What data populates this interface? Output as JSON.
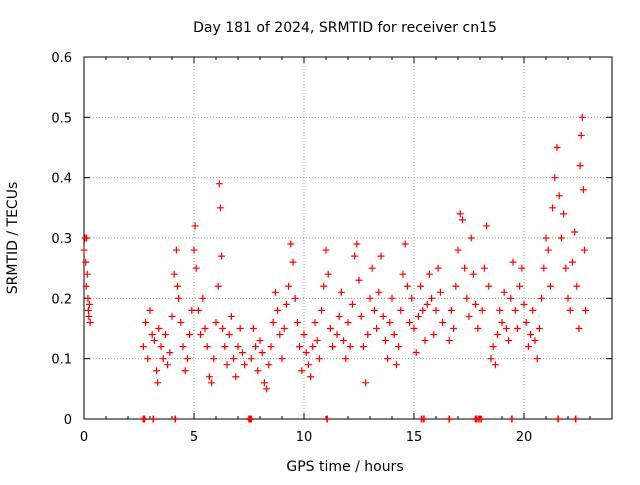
{
  "chart_data": {
    "type": "scatter",
    "title": "Day 181 of 2024, SRMTID for receiver cn15",
    "xlabel": "GPS time / hours",
    "ylabel": "SRMTID / TECUs",
    "xlim": [
      0,
      24
    ],
    "ylim": [
      0,
      0.6
    ],
    "x_ticks": [
      0,
      5,
      10,
      15,
      20
    ],
    "x_tick_labels": [
      "0",
      "5",
      "10",
      "15",
      "20"
    ],
    "y_ticks": [
      0,
      0.1,
      0.2,
      0.3,
      0.4,
      0.5,
      0.6
    ],
    "y_tick_labels": [
      "0",
      "0.1",
      "0.2",
      "0.3",
      "0.4",
      "0.5",
      "0.6"
    ],
    "grid": true,
    "marker": "+",
    "color": "#ff0000",
    "series": [
      {
        "name": "SRMTID",
        "points": [
          [
            0.0,
            0.28
          ],
          [
            0.05,
            0.3
          ],
          [
            0.08,
            0.26
          ],
          [
            0.1,
            0.22
          ],
          [
            0.12,
            0.3
          ],
          [
            0.15,
            0.24
          ],
          [
            0.18,
            0.2
          ],
          [
            0.2,
            0.18
          ],
          [
            0.22,
            0.17
          ],
          [
            0.25,
            0.19
          ],
          [
            0.28,
            0.16
          ],
          [
            2.7,
            0.12
          ],
          [
            2.8,
            0.16
          ],
          [
            2.9,
            0.1
          ],
          [
            3.0,
            0.18
          ],
          [
            3.1,
            0.14
          ],
          [
            3.2,
            0.13
          ],
          [
            3.3,
            0.08
          ],
          [
            3.35,
            0.06
          ],
          [
            3.4,
            0.15
          ],
          [
            3.5,
            0.12
          ],
          [
            3.6,
            0.1
          ],
          [
            3.7,
            0.14
          ],
          [
            3.8,
            0.09
          ],
          [
            3.9,
            0.11
          ],
          [
            4.0,
            0.17
          ],
          [
            4.1,
            0.24
          ],
          [
            4.2,
            0.28
          ],
          [
            4.25,
            0.22
          ],
          [
            4.3,
            0.2
          ],
          [
            4.4,
            0.16
          ],
          [
            4.5,
            0.12
          ],
          [
            4.6,
            0.08
          ],
          [
            4.7,
            0.1
          ],
          [
            4.8,
            0.14
          ],
          [
            4.9,
            0.18
          ],
          [
            5.0,
            0.28
          ],
          [
            5.05,
            0.32
          ],
          [
            5.1,
            0.25
          ],
          [
            5.2,
            0.18
          ],
          [
            5.3,
            0.14
          ],
          [
            5.4,
            0.2
          ],
          [
            5.5,
            0.15
          ],
          [
            5.6,
            0.12
          ],
          [
            5.7,
            0.07
          ],
          [
            5.8,
            0.06
          ],
          [
            5.9,
            0.1
          ],
          [
            6.0,
            0.16
          ],
          [
            6.1,
            0.22
          ],
          [
            6.15,
            0.39
          ],
          [
            6.2,
            0.35
          ],
          [
            6.25,
            0.27
          ],
          [
            6.3,
            0.15
          ],
          [
            6.4,
            0.12
          ],
          [
            6.5,
            0.09
          ],
          [
            6.6,
            0.14
          ],
          [
            6.7,
            0.17
          ],
          [
            6.8,
            0.1
          ],
          [
            6.9,
            0.07
          ],
          [
            7.0,
            0.12
          ],
          [
            7.1,
            0.15
          ],
          [
            7.2,
            0.11
          ],
          [
            7.3,
            0.09
          ],
          [
            7.6,
            0.1
          ],
          [
            7.7,
            0.15
          ],
          [
            7.8,
            0.12
          ],
          [
            7.9,
            0.08
          ],
          [
            8.0,
            0.13
          ],
          [
            8.1,
            0.11
          ],
          [
            8.2,
            0.06
          ],
          [
            8.3,
            0.05
          ],
          [
            8.4,
            0.09
          ],
          [
            8.5,
            0.12
          ],
          [
            8.6,
            0.16
          ],
          [
            8.7,
            0.21
          ],
          [
            8.8,
            0.18
          ],
          [
            8.9,
            0.14
          ],
          [
            9.0,
            0.1
          ],
          [
            9.1,
            0.15
          ],
          [
            9.2,
            0.19
          ],
          [
            9.3,
            0.22
          ],
          [
            9.4,
            0.29
          ],
          [
            9.5,
            0.26
          ],
          [
            9.6,
            0.2
          ],
          [
            9.7,
            0.16
          ],
          [
            9.8,
            0.12
          ],
          [
            9.9,
            0.08
          ],
          [
            10.0,
            0.14
          ],
          [
            10.1,
            0.11
          ],
          [
            10.2,
            0.09
          ],
          [
            10.3,
            0.07
          ],
          [
            10.4,
            0.12
          ],
          [
            10.5,
            0.16
          ],
          [
            10.6,
            0.13
          ],
          [
            10.7,
            0.1
          ],
          [
            10.8,
            0.18
          ],
          [
            10.9,
            0.22
          ],
          [
            11.0,
            0.28
          ],
          [
            11.1,
            0.24
          ],
          [
            11.2,
            0.15
          ],
          [
            11.3,
            0.12
          ],
          [
            11.5,
            0.14
          ],
          [
            11.6,
            0.17
          ],
          [
            11.7,
            0.21
          ],
          [
            11.8,
            0.13
          ],
          [
            11.9,
            0.1
          ],
          [
            12.0,
            0.16
          ],
          [
            12.1,
            0.12
          ],
          [
            12.2,
            0.19
          ],
          [
            12.3,
            0.27
          ],
          [
            12.4,
            0.29
          ],
          [
            12.5,
            0.23
          ],
          [
            12.6,
            0.17
          ],
          [
            12.7,
            0.12
          ],
          [
            12.8,
            0.06
          ],
          [
            12.9,
            0.14
          ],
          [
            13.0,
            0.2
          ],
          [
            13.1,
            0.25
          ],
          [
            13.2,
            0.18
          ],
          [
            13.3,
            0.15
          ],
          [
            13.4,
            0.21
          ],
          [
            13.5,
            0.27
          ],
          [
            13.6,
            0.17
          ],
          [
            13.7,
            0.13
          ],
          [
            13.8,
            0.1
          ],
          [
            13.9,
            0.16
          ],
          [
            14.0,
            0.2
          ],
          [
            14.1,
            0.14
          ],
          [
            14.2,
            0.09
          ],
          [
            14.3,
            0.12
          ],
          [
            14.4,
            0.18
          ],
          [
            14.5,
            0.24
          ],
          [
            14.6,
            0.29
          ],
          [
            14.7,
            0.22
          ],
          [
            14.8,
            0.16
          ],
          [
            14.9,
            0.2
          ],
          [
            15.0,
            0.15
          ],
          [
            15.1,
            0.11
          ],
          [
            15.2,
            0.17
          ],
          [
            15.3,
            0.22
          ],
          [
            15.4,
            0.18
          ],
          [
            15.5,
            0.13
          ],
          [
            15.6,
            0.19
          ],
          [
            15.7,
            0.24
          ],
          [
            15.8,
            0.2
          ],
          [
            15.9,
            0.14
          ],
          [
            16.0,
            0.18
          ],
          [
            16.1,
            0.25
          ],
          [
            16.2,
            0.21
          ],
          [
            16.3,
            0.16
          ],
          [
            16.6,
            0.13
          ],
          [
            16.7,
            0.18
          ],
          [
            16.8,
            0.15
          ],
          [
            16.9,
            0.22
          ],
          [
            17.0,
            0.28
          ],
          [
            17.1,
            0.34
          ],
          [
            17.2,
            0.33
          ],
          [
            17.3,
            0.25
          ],
          [
            17.4,
            0.2
          ],
          [
            17.5,
            0.17
          ],
          [
            17.6,
            0.3
          ],
          [
            17.7,
            0.24
          ],
          [
            17.8,
            0.19
          ],
          [
            17.9,
            0.15
          ],
          [
            18.1,
            0.18
          ],
          [
            18.2,
            0.25
          ],
          [
            18.3,
            0.32
          ],
          [
            18.4,
            0.22
          ],
          [
            18.5,
            0.1
          ],
          [
            18.6,
            0.12
          ],
          [
            18.7,
            0.09
          ],
          [
            18.8,
            0.14
          ],
          [
            18.9,
            0.18
          ],
          [
            19.0,
            0.16
          ],
          [
            19.1,
            0.21
          ],
          [
            19.2,
            0.15
          ],
          [
            19.3,
            0.13
          ],
          [
            19.4,
            0.2
          ],
          [
            19.5,
            0.26
          ],
          [
            19.6,
            0.18
          ],
          [
            19.7,
            0.15
          ],
          [
            19.8,
            0.22
          ],
          [
            19.9,
            0.25
          ],
          [
            20.0,
            0.19
          ],
          [
            20.1,
            0.16
          ],
          [
            20.2,
            0.12
          ],
          [
            20.3,
            0.14
          ],
          [
            20.4,
            0.18
          ],
          [
            20.5,
            0.13
          ],
          [
            20.6,
            0.1
          ],
          [
            20.7,
            0.15
          ],
          [
            20.8,
            0.2
          ],
          [
            20.9,
            0.25
          ],
          [
            21.0,
            0.3
          ],
          [
            21.1,
            0.28
          ],
          [
            21.2,
            0.22
          ],
          [
            21.3,
            0.35
          ],
          [
            21.4,
            0.4
          ],
          [
            21.5,
            0.45
          ],
          [
            21.6,
            0.37
          ],
          [
            21.7,
            0.3
          ],
          [
            21.8,
            0.34
          ],
          [
            21.9,
            0.25
          ],
          [
            22.0,
            0.2
          ],
          [
            22.1,
            0.18
          ],
          [
            22.2,
            0.26
          ],
          [
            22.3,
            0.31
          ],
          [
            22.4,
            0.22
          ],
          [
            22.5,
            0.15
          ],
          [
            22.55,
            0.42
          ],
          [
            22.6,
            0.47
          ],
          [
            22.65,
            0.5
          ],
          [
            22.7,
            0.38
          ],
          [
            22.75,
            0.28
          ],
          [
            22.8,
            0.18
          ]
        ]
      }
    ],
    "zero_markers_x": [
      2.7,
      2.75,
      3.15,
      4.15,
      7.5,
      7.55,
      7.6,
      11.05,
      15.35,
      15.45,
      16.6,
      17.8,
      17.85,
      17.95,
      18.05,
      19.45,
      21.55,
      22.35
    ]
  }
}
